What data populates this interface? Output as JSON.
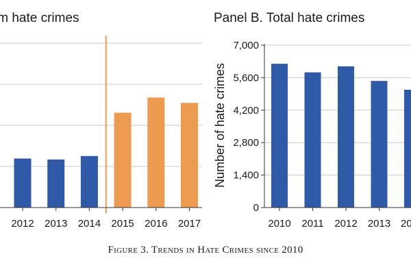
{
  "caption": "Figure 3. Trends in Hate Crimes since 2010",
  "chart_data": [
    {
      "type": "bar",
      "title": "im hate crimes",
      "xlabel": "",
      "ylabel": "",
      "categories": [
        "2012",
        "2013",
        "2014",
        "2015",
        "2016",
        "2017"
      ],
      "values": [
        155,
        152,
        163,
        300,
        348,
        331
      ],
      "ylim": [
        0,
        520
      ],
      "grid": true,
      "bar_colors": [
        "#2f5aa8",
        "#2f5aa8",
        "#2f5aa8",
        "#ec9b50",
        "#ec9b50",
        "#ec9b50"
      ],
      "reference_line": {
        "between": [
          "2014",
          "2015"
        ],
        "color": "#ec9b50"
      },
      "axis_color": "#333333",
      "grid_color": "#c8c8c8"
    },
    {
      "type": "bar",
      "title": "Panel B. Total hate crimes",
      "xlabel": "",
      "ylabel": "Number of hate crimes",
      "categories": [
        "2010",
        "2011",
        "2012",
        "2013",
        "20"
      ],
      "values": [
        6200,
        5830,
        6090,
        5460,
        5080
      ],
      "yticks": [
        0,
        1400,
        2800,
        4200,
        5600,
        7000
      ],
      "ytick_labels": [
        "0",
        "1,400",
        "2,800",
        "4,200",
        "5,600",
        "7,000"
      ],
      "ylim": [
        0,
        7000
      ],
      "grid": true,
      "bar_color": "#2f5aa8",
      "axis_color": "#333333",
      "grid_color": "#c8c8c8"
    }
  ]
}
